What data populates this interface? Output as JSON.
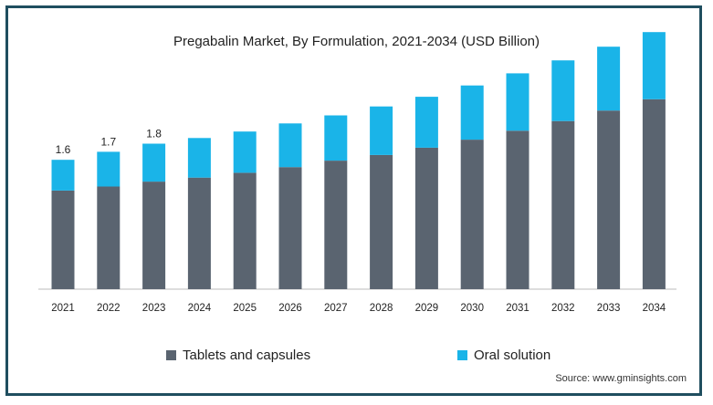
{
  "chart_data": {
    "type": "bar",
    "stacked": true,
    "title": "Pregabalin Market, By Formulation, 2021-2034 (USD Billion)",
    "categories": [
      "2021",
      "2022",
      "2023",
      "2024",
      "2025",
      "2026",
      "2027",
      "2028",
      "2029",
      "2030",
      "2031",
      "2032",
      "2033",
      "2034"
    ],
    "series": [
      {
        "name": "Tablets and capsules",
        "color": "#5a6470",
        "values": [
          1.22,
          1.27,
          1.33,
          1.38,
          1.44,
          1.51,
          1.59,
          1.66,
          1.75,
          1.85,
          1.96,
          2.08,
          2.21,
          2.35
        ]
      },
      {
        "name": "Oral solution",
        "color": "#1ab4e8",
        "values": [
          0.38,
          0.43,
          0.47,
          0.49,
          0.51,
          0.54,
          0.56,
          0.6,
          0.63,
          0.67,
          0.71,
          0.75,
          0.79,
          0.83
        ]
      }
    ],
    "data_labels": [
      {
        "category": "2021",
        "text": "1.6"
      },
      {
        "category": "2022",
        "text": "1.7"
      },
      {
        "category": "2023",
        "text": "1.8"
      }
    ],
    "ylim": [
      0,
      3.25
    ],
    "grid": false,
    "legend_position": "bottom"
  },
  "source": "Source: www.gminsights.com"
}
